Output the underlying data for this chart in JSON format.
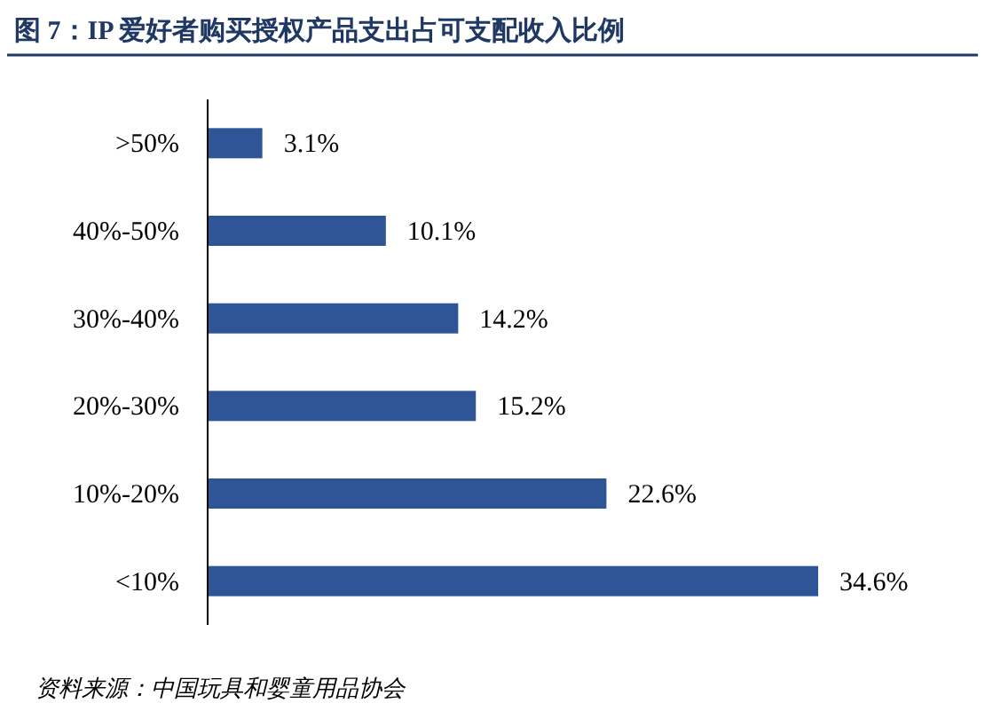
{
  "chart_data": {
    "type": "bar",
    "orientation": "horizontal",
    "title": "图 7：IP 爱好者购买授权产品支出占可支配收入比例",
    "categories": [
      ">50%",
      "40%-50%",
      "30%-40%",
      "20%-30%",
      "10%-20%",
      "<10%"
    ],
    "values": [
      3.1,
      10.1,
      14.2,
      15.2,
      22.6,
      34.6
    ],
    "value_labels": [
      "3.1%",
      "10.1%",
      "14.2%",
      "15.2%",
      "22.6%",
      "34.6%"
    ],
    "color": "#2f5597",
    "annotations": [
      "资料来源：中国玩具和婴童用品协会"
    ]
  }
}
